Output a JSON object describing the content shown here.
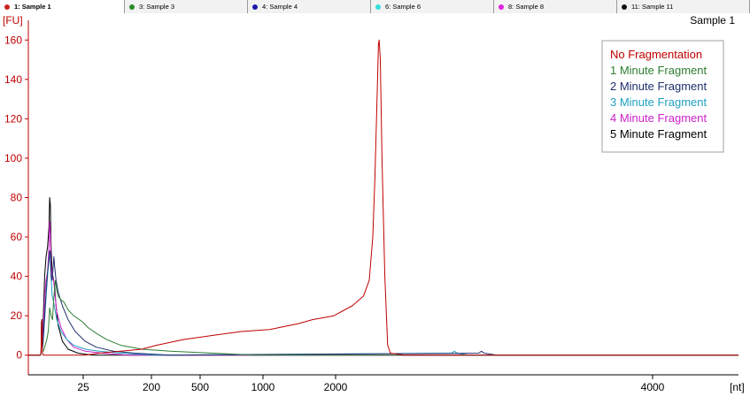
{
  "tabs": [
    {
      "label": "1: Sample 1",
      "color": "#cc2222",
      "active": true
    },
    {
      "label": "3: Sample 3",
      "color": "#2a8a2a",
      "active": false
    },
    {
      "label": "4: Sample 4",
      "color": "#1a1aaa",
      "active": false
    },
    {
      "label": "6: Sample 6",
      "color": "#33dddd",
      "active": false
    },
    {
      "label": "8: Sample 8",
      "color": "#dd22dd",
      "active": false
    },
    {
      "label": "11: Sample 11",
      "color": "#111111",
      "active": false
    }
  ],
  "chart_data": {
    "type": "line",
    "title": "Sample 1",
    "ylabel": "[FU]",
    "xlabel": "[nt]",
    "ylim": [
      -10,
      170
    ],
    "yticks": [
      0,
      20,
      40,
      60,
      80,
      100,
      120,
      140,
      160
    ],
    "xticks": [
      "25",
      "200",
      "500",
      "1000",
      "2000",
      "4000"
    ],
    "grid": false,
    "legend_position": "top-right",
    "series": [
      {
        "name": "No Fragmentation",
        "color": "#c00000",
        "points": [
          [
            0,
            0
          ],
          [
            85,
            0
          ],
          [
            90,
            1
          ],
          [
            93,
            16
          ],
          [
            95,
            18
          ],
          [
            97,
            10
          ],
          [
            100,
            1
          ],
          [
            105,
            0
          ],
          [
            400,
            0
          ],
          [
            500,
            1
          ],
          [
            800,
            3
          ],
          [
            900,
            5
          ],
          [
            1100,
            8
          ],
          [
            1300,
            10
          ],
          [
            1500,
            12
          ],
          [
            1700,
            13
          ],
          [
            1900,
            16
          ],
          [
            2000,
            18
          ],
          [
            2150,
            20
          ],
          [
            2280,
            25
          ],
          [
            2360,
            30
          ],
          [
            2400,
            38
          ],
          [
            2425,
            60
          ],
          [
            2440,
            90
          ],
          [
            2455,
            130
          ],
          [
            2465,
            158
          ],
          [
            2470,
            160
          ],
          [
            2478,
            150
          ],
          [
            2490,
            100
          ],
          [
            2510,
            40
          ],
          [
            2530,
            5
          ],
          [
            2550,
            1
          ],
          [
            2650,
            0
          ],
          [
            3000,
            0
          ],
          [
            5000,
            0
          ]
        ]
      },
      {
        "name": "1 Minute Fragment",
        "color": "#2e7d32",
        "points": [
          [
            0,
            0
          ],
          [
            85,
            0
          ],
          [
            90,
            1
          ],
          [
            93,
            16
          ],
          [
            95,
            17
          ],
          [
            97,
            9
          ],
          [
            100,
            2
          ],
          [
            105,
            2
          ],
          [
            115,
            4
          ],
          [
            130,
            8
          ],
          [
            140,
            12
          ],
          [
            150,
            24
          ],
          [
            160,
            20
          ],
          [
            170,
            18
          ],
          [
            180,
            30
          ],
          [
            190,
            38
          ],
          [
            200,
            33
          ],
          [
            210,
            30
          ],
          [
            230,
            28
          ],
          [
            250,
            27
          ],
          [
            280,
            23
          ],
          [
            320,
            20
          ],
          [
            380,
            17
          ],
          [
            420,
            14
          ],
          [
            480,
            11
          ],
          [
            550,
            8
          ],
          [
            650,
            5
          ],
          [
            800,
            3
          ],
          [
            1000,
            2
          ],
          [
            1300,
            1
          ],
          [
            1600,
            0
          ],
          [
            5000,
            0
          ]
        ]
      },
      {
        "name": "2 Minute Fragment",
        "color": "#1f2f6e",
        "points": [
          [
            0,
            0
          ],
          [
            85,
            0
          ],
          [
            90,
            1
          ],
          [
            93,
            17
          ],
          [
            95,
            18
          ],
          [
            97,
            9
          ],
          [
            100,
            3
          ],
          [
            105,
            8
          ],
          [
            115,
            20
          ],
          [
            125,
            32
          ],
          [
            135,
            42
          ],
          [
            145,
            48
          ],
          [
            150,
            53
          ],
          [
            155,
            52
          ],
          [
            160,
            40
          ],
          [
            168,
            38
          ],
          [
            175,
            45
          ],
          [
            180,
            50
          ],
          [
            185,
            45
          ],
          [
            195,
            38
          ],
          [
            210,
            32
          ],
          [
            240,
            25
          ],
          [
            280,
            18
          ],
          [
            330,
            12
          ],
          [
            400,
            7
          ],
          [
            480,
            4
          ],
          [
            600,
            2
          ],
          [
            750,
            1
          ],
          [
            1000,
            0
          ],
          [
            3170,
            1
          ],
          [
            3190,
            2
          ],
          [
            3210,
            1
          ],
          [
            3300,
            0
          ],
          [
            5000,
            0
          ]
        ]
      },
      {
        "name": "3 Minute Fragment",
        "color": "#1fa0c0",
        "points": [
          [
            0,
            0
          ],
          [
            85,
            0
          ],
          [
            90,
            1
          ],
          [
            93,
            17
          ],
          [
            95,
            18
          ],
          [
            97,
            10
          ],
          [
            100,
            3
          ],
          [
            105,
            7
          ],
          [
            115,
            18
          ],
          [
            130,
            35
          ],
          [
            140,
            45
          ],
          [
            150,
            52
          ],
          [
            155,
            48
          ],
          [
            160,
            40
          ],
          [
            168,
            30
          ],
          [
            175,
            28
          ],
          [
            185,
            24
          ],
          [
            200,
            18
          ],
          [
            230,
            12
          ],
          [
            270,
            8
          ],
          [
            320,
            5
          ],
          [
            400,
            3
          ],
          [
            500,
            2
          ],
          [
            650,
            1
          ],
          [
            900,
            0
          ],
          [
            2980,
            1
          ],
          [
            3000,
            2
          ],
          [
            3020,
            1
          ],
          [
            3100,
            0
          ],
          [
            5000,
            0
          ]
        ]
      },
      {
        "name": "4 Minute Fragment",
        "color": "#cc22cc",
        "points": [
          [
            0,
            0
          ],
          [
            85,
            0
          ],
          [
            90,
            1
          ],
          [
            93,
            17
          ],
          [
            95,
            18
          ],
          [
            97,
            10
          ],
          [
            100,
            4
          ],
          [
            105,
            12
          ],
          [
            115,
            30
          ],
          [
            125,
            38
          ],
          [
            135,
            42
          ],
          [
            145,
            55
          ],
          [
            150,
            68
          ],
          [
            155,
            62
          ],
          [
            160,
            46
          ],
          [
            168,
            40
          ],
          [
            178,
            38
          ],
          [
            188,
            30
          ],
          [
            200,
            22
          ],
          [
            230,
            14
          ],
          [
            270,
            8
          ],
          [
            320,
            4
          ],
          [
            400,
            2
          ],
          [
            520,
            1
          ],
          [
            700,
            0
          ],
          [
            5000,
            0
          ]
        ]
      },
      {
        "name": "5 Minute Fragment",
        "color": "#000000",
        "points": [
          [
            0,
            0
          ],
          [
            85,
            0
          ],
          [
            90,
            1
          ],
          [
            93,
            17
          ],
          [
            95,
            18
          ],
          [
            97,
            10
          ],
          [
            100,
            5
          ],
          [
            105,
            18
          ],
          [
            115,
            40
          ],
          [
            125,
            50
          ],
          [
            135,
            55
          ],
          [
            145,
            65
          ],
          [
            150,
            80
          ],
          [
            155,
            76
          ],
          [
            160,
            55
          ],
          [
            168,
            42
          ],
          [
            178,
            38
          ],
          [
            185,
            35
          ],
          [
            195,
            25
          ],
          [
            210,
            15
          ],
          [
            240,
            7
          ],
          [
            280,
            3
          ],
          [
            350,
            1
          ],
          [
            450,
            0
          ],
          [
            5000,
            0
          ]
        ]
      }
    ]
  }
}
